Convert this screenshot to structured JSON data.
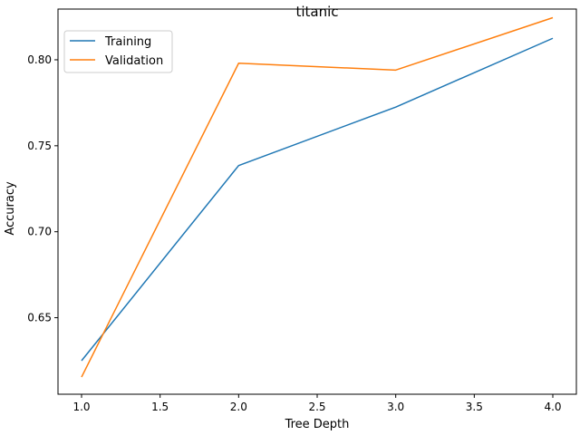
{
  "chart_data": {
    "type": "line",
    "title": "titanic",
    "xlabel": "Tree Depth",
    "ylabel": "Accuracy",
    "xlim": [
      0.85,
      4.15
    ],
    "ylim": [
      0.6055,
      0.8295
    ],
    "x_ticks": [
      1.0,
      1.5,
      2.0,
      2.5,
      3.0,
      3.5,
      4.0
    ],
    "x_tick_labels": [
      "1.0",
      "1.5",
      "2.0",
      "2.5",
      "3.0",
      "3.5",
      "4.0"
    ],
    "y_ticks": [
      0.65,
      0.7,
      0.75,
      0.8
    ],
    "y_tick_labels": [
      "0.65",
      "0.70",
      "0.75",
      "0.80"
    ],
    "grid": false,
    "legend_position": "top-left",
    "x": [
      1,
      2,
      3,
      4
    ],
    "series": [
      {
        "name": "Training",
        "color": "#1f77b4",
        "values": [
          0.625,
          0.7385,
          0.7725,
          0.8125
        ]
      },
      {
        "name": "Validation",
        "color": "#ff7f0e",
        "values": [
          0.6155,
          0.798,
          0.794,
          0.8245
        ]
      }
    ]
  }
}
